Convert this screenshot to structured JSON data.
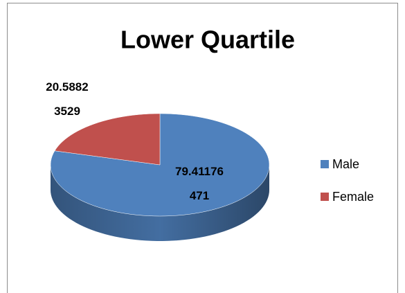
{
  "chart_data": {
    "type": "pie",
    "title": "Lower Quartile",
    "categories": [
      "Male",
      "Female"
    ],
    "values": [
      79.41176471,
      20.58823529
    ],
    "colors": [
      "#4f81bd",
      "#c0504d"
    ],
    "legend": "right"
  }
}
